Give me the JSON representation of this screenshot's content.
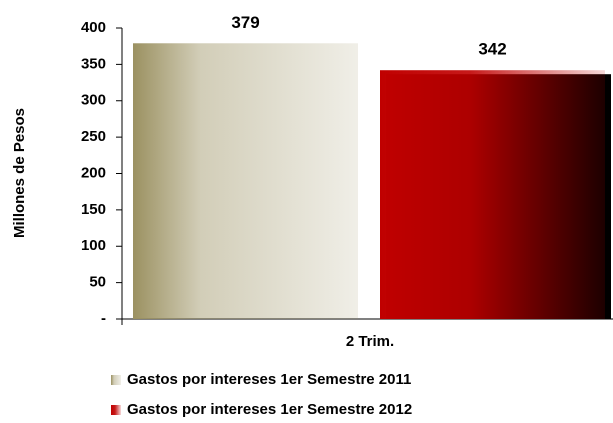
{
  "chart_data": {
    "type": "bar",
    "categories": [
      "2 Trim."
    ],
    "series": [
      {
        "name": "Gastos por intereses 1er Semestre 2011",
        "color": "#9b9161",
        "values": [
          379
        ]
      },
      {
        "name": "Gastos por intereses 1er Semestre 2012",
        "color": "#c00000",
        "values": [
          342
        ]
      }
    ],
    "y_label": "Millones de Pesos",
    "ylim": [
      0,
      400
    ],
    "yticks": [
      {
        "value": 0,
        "label": "-"
      },
      50,
      100,
      150,
      200,
      250,
      300,
      350,
      400
    ],
    "data_labels": true
  }
}
